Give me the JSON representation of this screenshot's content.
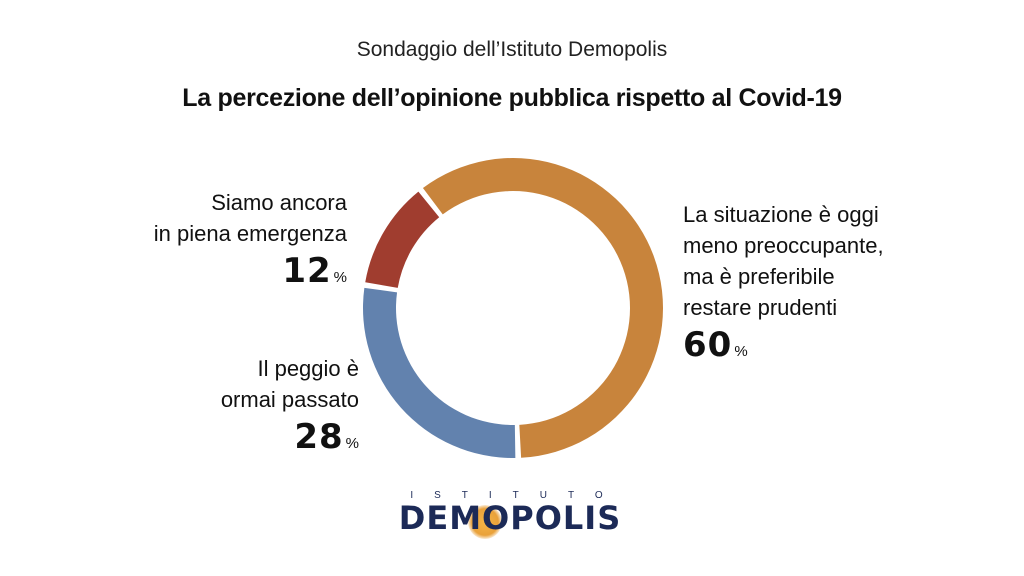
{
  "header": {
    "subtitle": "Sondaggio dell’Istituto Demopolis",
    "title": "La percezione dell’opinione pubblica rispetto al Covid-19"
  },
  "chart_data": {
    "type": "pie",
    "style": "donut",
    "slices": [
      {
        "label_lines": [
          "La situazione è oggi",
          "meno preoccupante,",
          "ma è preferibile",
          "restare prudenti"
        ],
        "value": 60,
        "display": "60",
        "color": "#c8843c"
      },
      {
        "label_lines": [
          "Il peggio è",
          "ormai passato"
        ],
        "value": 28,
        "display": "28",
        "color": "#6282ae"
      },
      {
        "label_lines": [
          "Siamo ancora",
          "in piena emergenza"
        ],
        "value": 12,
        "display": "12",
        "color": "#a03d2f"
      }
    ],
    "unit": "%"
  },
  "logo": {
    "small": "ISTITUTO",
    "main": "DEMOPOLIS"
  }
}
